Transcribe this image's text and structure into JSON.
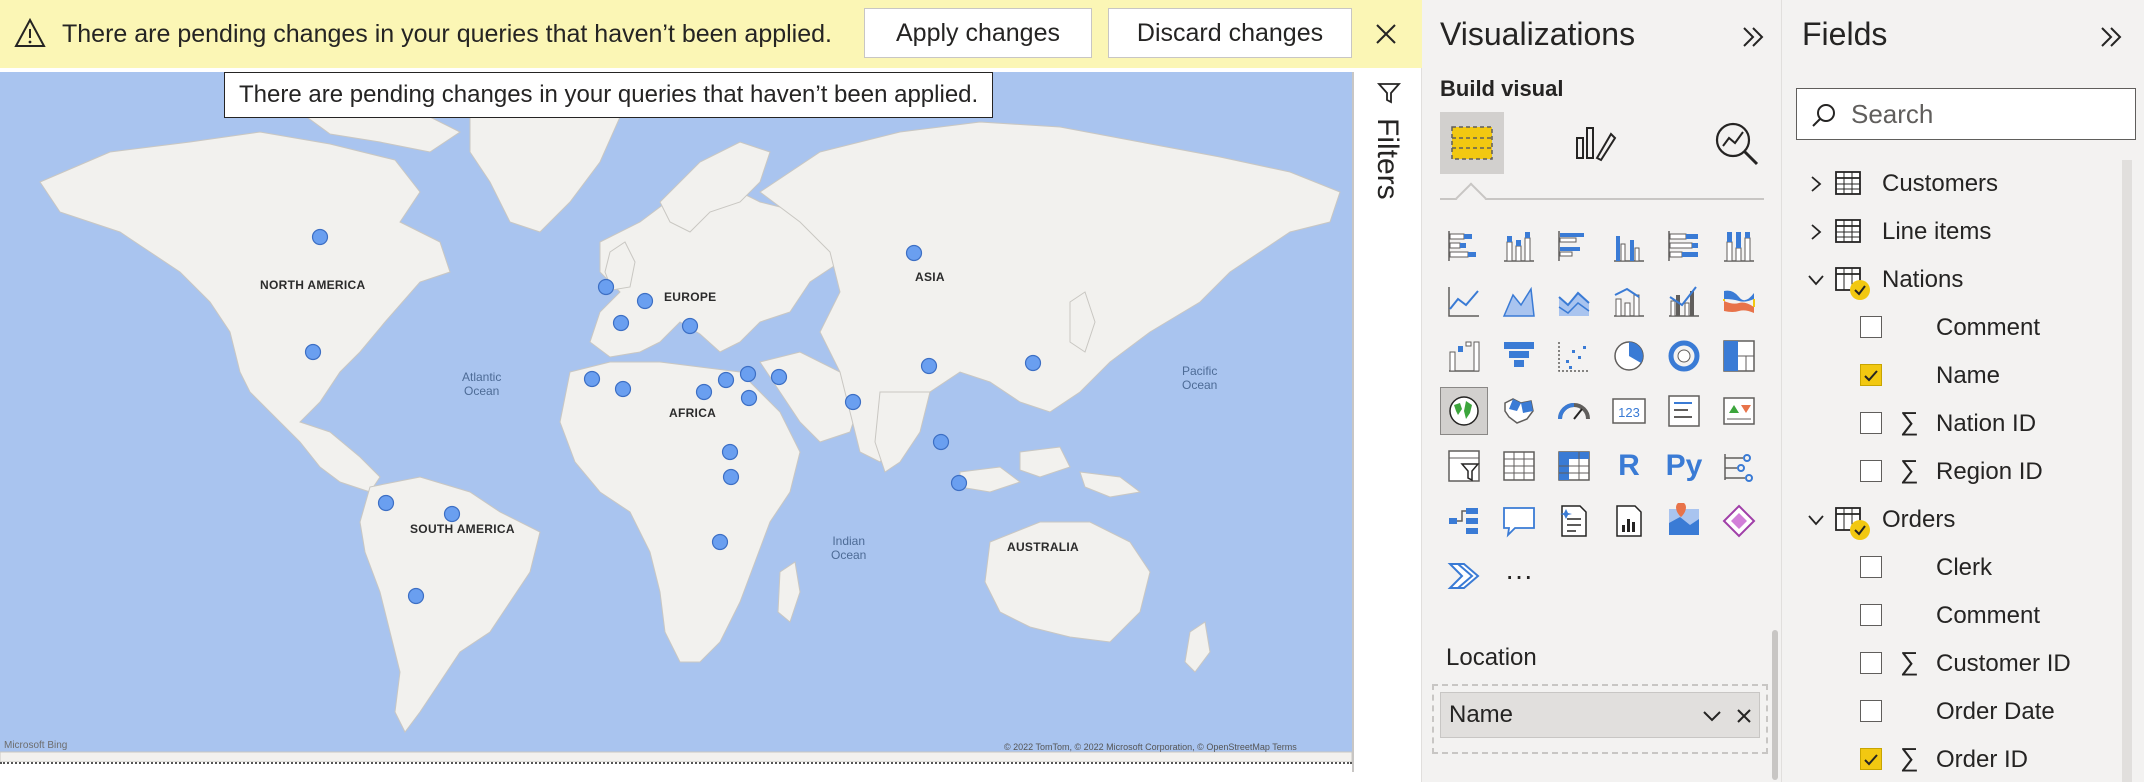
{
  "banner": {
    "message": "There are pending changes in your queries that haven’t been applied.",
    "apply_label": "Apply changes",
    "discard_label": "Discard changes",
    "icon": "warning-icon",
    "close_icon": "close-icon",
    "bg_color": "#fbf6b5"
  },
  "tooltip": {
    "text": "There are pending changes in your queries that haven’t been applied."
  },
  "map": {
    "continents": [
      "NORTH AMERICA",
      "SOUTH AMERICA",
      "EUROPE",
      "AFRICA",
      "ASIA",
      "AUSTRALIA"
    ],
    "oceans": [
      {
        "line1": "Atlantic",
        "line2": "Ocean"
      },
      {
        "line1": "Pacific",
        "line2": "Ocean"
      },
      {
        "line1": "Indian",
        "line2": "Ocean"
      }
    ],
    "bing_text": "Microsoft Bing",
    "attribution": "© 2022 TomTom, © 2022 Microsoft Corporation, © OpenStreetMap  Terms",
    "ocean_color": "#a9c4ef",
    "land_color": "#f2f1ee",
    "bubble_color": "#6a9ff0"
  },
  "filters": {
    "label": "Filters",
    "icon": "filter-icon"
  },
  "visualizations": {
    "title": "Visualizations",
    "collapse_icon": "double-chevron-right-icon",
    "build_label": "Build visual",
    "tabs": [
      "build-visual-icon",
      "format-visual-icon",
      "analytics-icon"
    ],
    "icons": [
      "stacked-bar-chart-icon",
      "stacked-column-chart-icon",
      "clustered-bar-chart-icon",
      "clustered-column-chart-icon",
      "100-stacked-bar-chart-icon",
      "100-stacked-column-chart-icon",
      "line-chart-icon",
      "area-chart-icon",
      "stacked-area-chart-icon",
      "line-and-stacked-column-icon",
      "line-and-clustered-column-icon",
      "ribbon-chart-icon",
      "waterfall-chart-icon",
      "funnel-icon",
      "scatter-chart-icon",
      "pie-chart-icon",
      "donut-chart-icon",
      "treemap-icon",
      "map-icon",
      "filled-map-icon",
      "gauge-icon",
      "card-icon",
      "multi-row-card-icon",
      "kpi-icon",
      "slicer-icon",
      "table-icon",
      "matrix-icon",
      "r-visual-icon",
      "python-visual-icon",
      "key-influencers-icon",
      "decomposition-tree-icon",
      "qa-icon",
      "smart-narrative-icon",
      "paginated-report-icon",
      "azure-map-icon",
      "power-apps-icon",
      "power-automate-icon",
      "more-visuals-icon"
    ],
    "r_text": "R",
    "py_text": "Py",
    "card_text": "123",
    "more_text": "···",
    "location_label": "Location",
    "location_field": "Name",
    "accent_color": "#f2c811"
  },
  "fields": {
    "title": "Fields",
    "collapse_icon": "double-chevron-right-icon",
    "search_placeholder": "Search",
    "tables": [
      {
        "name": "Customers",
        "expanded": false,
        "checked": false
      },
      {
        "name": "Line items",
        "expanded": false,
        "checked": false
      },
      {
        "name": "Nations",
        "expanded": true,
        "checked": true,
        "fields": [
          {
            "name": "Comment",
            "sigma": false,
            "checked": false
          },
          {
            "name": "Name",
            "sigma": false,
            "checked": true
          },
          {
            "name": "Nation ID",
            "sigma": true,
            "checked": false
          },
          {
            "name": "Region ID",
            "sigma": true,
            "checked": false
          }
        ]
      },
      {
        "name": "Orders",
        "expanded": true,
        "checked": true,
        "fields": [
          {
            "name": "Clerk",
            "sigma": false,
            "checked": false
          },
          {
            "name": "Comment",
            "sigma": false,
            "checked": false
          },
          {
            "name": "Customer ID",
            "sigma": true,
            "checked": false
          },
          {
            "name": "Order Date",
            "sigma": false,
            "checked": false
          },
          {
            "name": "Order ID",
            "sigma": true,
            "checked": true
          }
        ]
      }
    ]
  }
}
